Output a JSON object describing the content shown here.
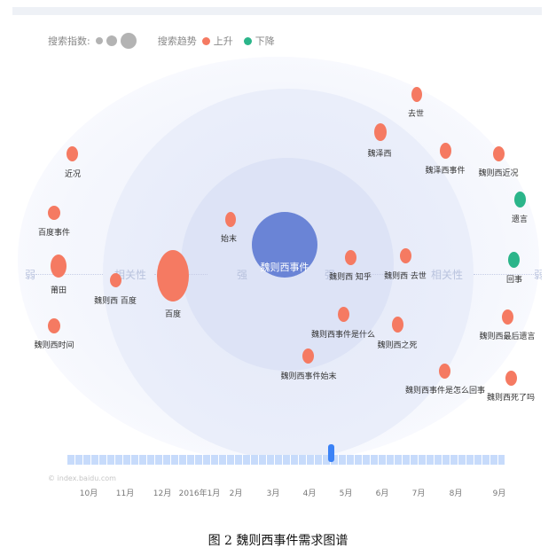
{
  "legend": {
    "index_label": "搜索指数:",
    "trend_label": "搜索趋势",
    "up_label": "上升",
    "down_label": "下降",
    "up_color": "#f57a62",
    "down_color": "#2bb58a"
  },
  "center": {
    "label": "魏则西事件"
  },
  "axis": {
    "weak": "弱",
    "strong": "强",
    "relevance": "相关性"
  },
  "nodes": {
    "jinkuang": "近况",
    "baidu_shijian": "百度事件",
    "putian": "莆田",
    "weizexi_shijian_time": "魏则西时间",
    "weizexi_baidu": "魏则西 百度",
    "baidu": "百度",
    "shimo": "始末",
    "weizexi_zhihu": "魏则西 知乎",
    "weizexi_shijian_shenme": "魏则西事件是什么",
    "weizexi_shijian_shimo": "魏则西事件始末",
    "qushi": "去世",
    "weizexi_name": "魏泽西",
    "weizexi_shijian2": "魏泽西事件",
    "weizexi_qushi": "魏则西 去世",
    "weizexi_zhisi": "魏则西之死",
    "weizexi_zenme_huishi": "魏则西事件是怎么回事",
    "weizexi_jinkuang": "魏则西近况",
    "yiyan": "遗言",
    "huishi": "回事",
    "weizexi_zuihou_yiyan": "魏则西最后遗言",
    "weizexi_sile_ma": "魏则西死了吗"
  },
  "watermark": "© index.baidu.com",
  "timeline": {
    "months": [
      "10月",
      "11月",
      "12月",
      "2016年1月",
      "2月",
      "3月",
      "4月",
      "5月",
      "6月",
      "7月",
      "8月",
      "9月"
    ]
  },
  "caption": "图 2    魏则西事件需求图谱"
}
